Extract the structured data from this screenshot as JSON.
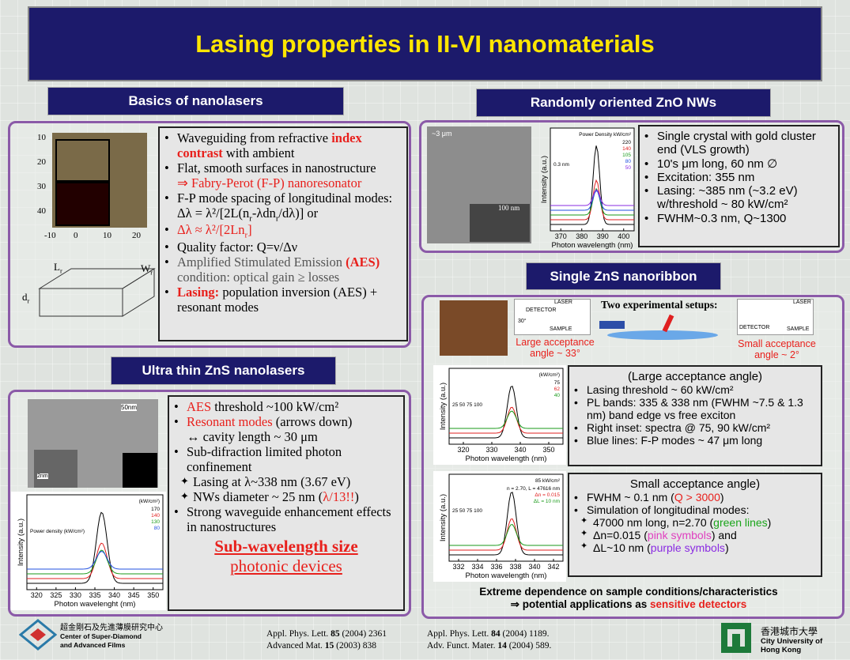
{
  "title": "Lasing properties in II-VI nanomaterials",
  "basics": {
    "heading": "Basics of nanolasers",
    "image_yticks": [
      "10",
      "20",
      "30",
      "40"
    ],
    "image_xticks": [
      "-10",
      "0",
      "10",
      "20"
    ],
    "diagram_labels": [
      [
        "L",
        {
          "text": "r",
          "style": "sub"
        }
      ],
      [
        "W",
        {
          "text": "r",
          "style": "sub"
        }
      ],
      [
        "d",
        {
          "text": "r",
          "style": "sub"
        }
      ]
    ],
    "bullets": [
      {
        "marker": "•",
        "parts": [
          "Waveguiding from refractive ",
          {
            "text": "index contrast",
            "style": "red bold"
          },
          " with ambient"
        ]
      },
      {
        "marker": "•",
        "parts": [
          "Flat, smooth surfaces in nanostructure"
        ]
      },
      {
        "parts": [
          {
            "text": "⇒ Fabry-Perot (F-P) nanoresonator",
            "style": "red"
          }
        ]
      },
      {
        "marker": "•",
        "parts": [
          "F-P mode spacing of longitudinal modes: Δλ = λ²/[2L(n",
          {
            "text": "r",
            "style": "sub"
          },
          "-λdn",
          {
            "text": "r",
            "style": "sub"
          },
          "/dλ)] or"
        ]
      },
      {
        "marker": "•",
        "parts": [
          {
            "text": "Δλ ≈ λ²/[2Ln",
            "style": "red"
          },
          {
            "text": "r",
            "style": "red sub"
          },
          {
            "text": "]",
            "style": "red"
          }
        ]
      },
      {
        "marker": "•",
        "parts": [
          "Quality factor: Q=ν/Δν"
        ]
      },
      {
        "marker": "•",
        "parts": [
          {
            "text": "Amplified Stimulated Emission ",
            "style": "gray"
          },
          {
            "text": "(AES)",
            "style": "red bold"
          },
          {
            "text": " condition: optical gain ≥  losses",
            "style": "gray"
          }
        ]
      },
      {
        "marker": "•",
        "parts": [
          {
            "text": "Lasing:",
            "style": "red bold"
          },
          " population inversion (AES) + resonant modes"
        ]
      }
    ]
  },
  "zno": {
    "heading": "Randomly oriented  ZnO NWs",
    "sem_labels": [
      "~3 μm",
      "100 nm"
    ],
    "plot": {
      "ylabel": "Intensity (a.u.)",
      "xlabel": "Photon wavelength (nm)",
      "xticks": [
        "370",
        "380",
        "390",
        "400"
      ],
      "legend_title": "Power Density kW/cm²",
      "legend": [
        "220",
        "140",
        "105",
        "80",
        "50"
      ],
      "note": "0.3 nm"
    },
    "bullets": [
      {
        "marker": "•",
        "parts": [
          "Single crystal with gold cluster end (VLS growth)"
        ]
      },
      {
        "marker": "•",
        "parts": [
          "10's μm long, 60 nm ∅"
        ]
      },
      {
        "marker": "•",
        "parts": [
          "Excitation: 355 nm"
        ]
      },
      {
        "marker": "•",
        "parts": [
          "Lasing: ~385 nm  (~3.2 eV) w/threshold ~ 80 kW/cm²"
        ]
      },
      {
        "marker": "•",
        "parts": [
          "FWHM~0.3 nm, Q~1300"
        ]
      }
    ]
  },
  "zns_ribbon": {
    "heading": "Single ZnS nanoribbon",
    "setups_title": "Two experimental setups:",
    "large_angle": "Large acceptance angle ~ 33°",
    "small_angle": "Small acceptance angle ~ 2°",
    "setup_labels": [
      "LASER",
      "DETECTOR",
      "SAMPLE",
      "30°",
      "LASER",
      "DETECTOR",
      "SAMPLE"
    ],
    "plot1": {
      "ylabel": "Intensity (a.u.)",
      "xlabel": "Photon wavelength (nm)",
      "xticks": [
        "320",
        "330",
        "340",
        "350"
      ],
      "legend_title": "(kW/cm²)",
      "legend": [
        "75",
        "62",
        "40"
      ],
      "note": "25 50 75 100"
    },
    "plot2": {
      "ylabel": "Intensity (a.u.)",
      "xlabel": "Photon wavelength (nm)",
      "xticks": [
        "332",
        "334",
        "336",
        "338",
        "340",
        "342"
      ],
      "legend_title": "85 kW/cm²",
      "legend": [
        "n = 2.70, L = 47616 nm",
        "Δn = 0.015",
        "ΔL = 10 nm"
      ],
      "note": "25 50 75 100"
    },
    "box1_title": "(Large acceptance angle)",
    "box1": [
      {
        "marker": "•",
        "parts": [
          "Lasing threshold ~ 60 kW/cm²"
        ]
      },
      {
        "marker": "•",
        "parts": [
          "PL bands: 335 & 338 nm (FWHM ~7.5 & 1.3 nm) band edge vs free exciton"
        ]
      },
      {
        "marker": "•",
        "parts": [
          "Right inset: spectra @ 75, 90 kW/cm²"
        ]
      },
      {
        "marker": "•",
        "parts": [
          "Blue lines: F-P modes ~ 47 μm long"
        ]
      }
    ],
    "box2_title": "Small acceptance angle)",
    "box2": [
      {
        "marker": "•",
        "parts": [
          "FWHM ~ 0.1 nm (",
          {
            "text": "Q > 3000",
            "style": "red"
          },
          ")"
        ]
      },
      {
        "marker": "•",
        "parts": [
          "Simulation of longitudinal modes:"
        ]
      },
      {
        "marker": "✦",
        "parts": [
          "47000 nm long, n=2.70 (",
          {
            "text": "green lines",
            "style": "green"
          },
          ")"
        ]
      },
      {
        "marker": "✦",
        "parts": [
          "Δn=0.015 (",
          {
            "text": "pink symbols",
            "style": "pink"
          },
          ") and"
        ]
      },
      {
        "marker": "✦",
        "parts": [
          "ΔL~10 nm (",
          {
            "text": "purple symbols",
            "style": "purple"
          },
          ")"
        ]
      }
    ],
    "conclusion": [
      [
        "Extreme dependence on sample conditions/characteristics"
      ],
      [
        "⇒ potential applications as ",
        {
          "text": "sensitive detectors",
          "style": "red"
        }
      ]
    ]
  },
  "ultrathin": {
    "heading": "Ultra thin ZnS nanolasers",
    "tem_labels": [
      "50nm",
      "2nm"
    ],
    "plot": {
      "ylabel": "Intensity (a.u.)",
      "xlabel": "Photon wavelenght (nm)",
      "xticks": [
        "320",
        "325",
        "330",
        "335",
        "340",
        "345",
        "350"
      ],
      "legend_title": "(kW/cm²)",
      "legend": [
        "170",
        "140",
        "130",
        "80"
      ],
      "note": "Power density (kW/cm²)"
    },
    "bullets": [
      {
        "marker": "•",
        "parts": [
          {
            "text": "AES",
            "style": "red"
          },
          " threshold ~100 kW/cm²"
        ]
      },
      {
        "marker": "•",
        "parts": [
          {
            "text": "Resonant modes",
            "style": "red"
          },
          "  (arrows down)"
        ]
      },
      {
        "parts": [
          "↔  cavity length ~ 30 μm"
        ]
      },
      {
        "marker": "•",
        "parts": [
          "Sub-difraction limited photon confinement"
        ]
      },
      {
        "marker": "✦",
        "parts": [
          "Lasing at λ~338 nm (3.67 eV)"
        ]
      },
      {
        "marker": "✦",
        "parts": [
          "NWs diameter ~ 25 nm (",
          {
            "text": "λ/13!!",
            "style": "red"
          },
          ")"
        ]
      },
      {
        "marker": "•",
        "parts": [
          "Strong waveguide enhancement effects in nanostructures"
        ]
      }
    ],
    "emphasis": [
      [
        {
          "text": "Sub-wavelength size",
          "style": "red bold under"
        }
      ],
      [
        {
          "text": "photonic devices",
          "style": "red under"
        }
      ]
    ]
  },
  "footer": {
    "center_cn": "超金剛石及先進薄膜研究中心",
    "center_en": "Center of Super-Diamond and Advanced Films",
    "refs_left": [
      [
        "Appl. Phys. Lett. ",
        {
          "text": "85",
          "style": "bold"
        },
        " (2004) 2361"
      ],
      [
        "Advanced Mat. ",
        {
          "text": "15",
          "style": "bold"
        },
        " (2003) 838"
      ]
    ],
    "refs_right": [
      [
        "Appl. Phys. Lett. ",
        {
          "text": "84",
          "style": "bold"
        },
        " (2004) 1189."
      ],
      [
        "Adv. Funct. Mater. ",
        {
          "text": "14",
          "style": "bold"
        },
        " (2004) 589."
      ]
    ],
    "univ_cn": "香港城市大學",
    "univ_en": "City University of Hong Kong"
  }
}
